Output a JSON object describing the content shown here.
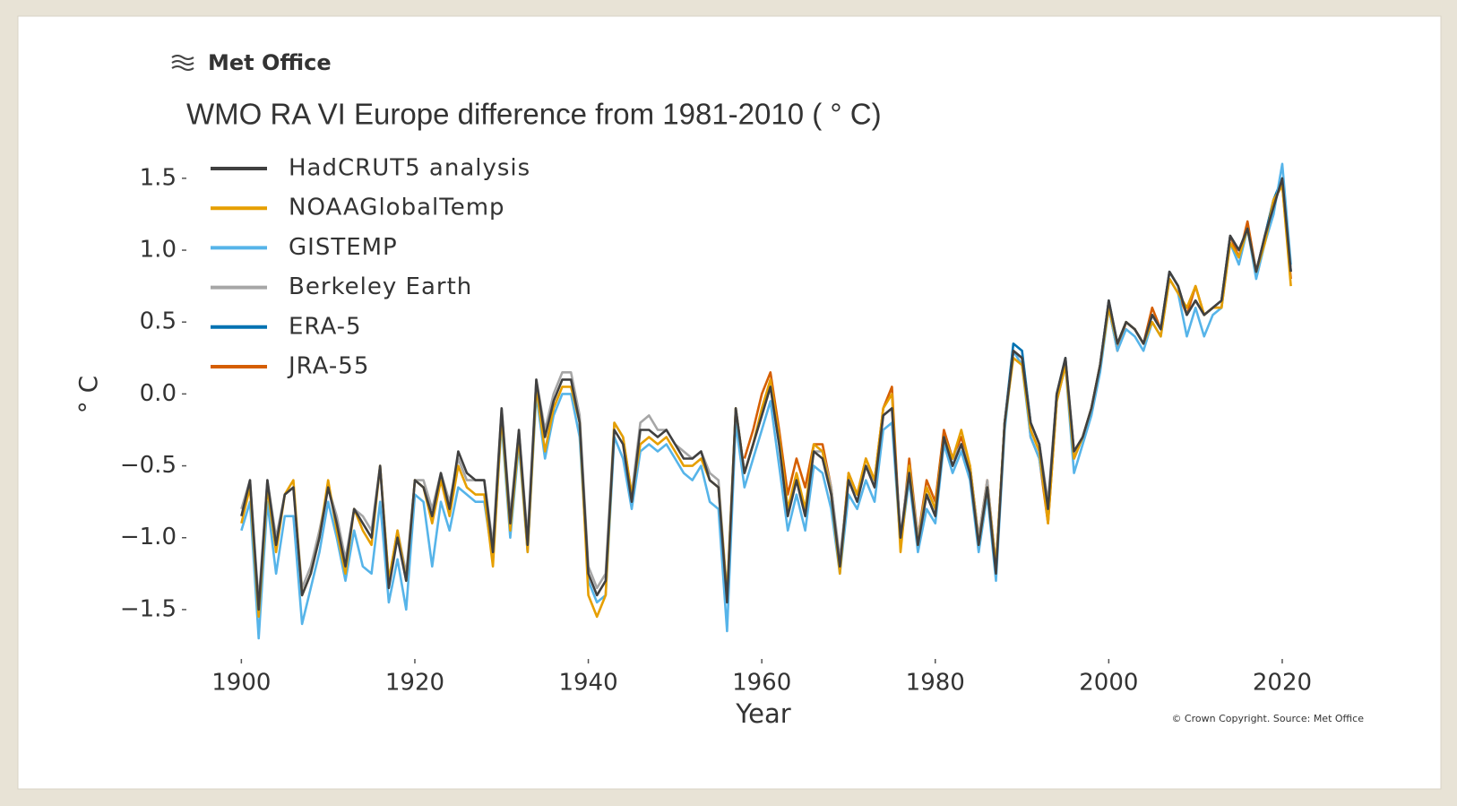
{
  "logo": "Met Office",
  "chart_data": {
    "type": "line",
    "title": "WMO RA VI Europe difference from 1981-2010 ( ° C)",
    "x_label": "Year",
    "y_label": "° C",
    "annotation": "© Crown Copyright. Source: Met Office",
    "x": [
      1900,
      1901,
      1902,
      1903,
      1904,
      1905,
      1906,
      1907,
      1908,
      1909,
      1910,
      1911,
      1912,
      1913,
      1914,
      1915,
      1916,
      1917,
      1918,
      1919,
      1920,
      1921,
      1922,
      1923,
      1924,
      1925,
      1926,
      1927,
      1928,
      1929,
      1930,
      1931,
      1932,
      1933,
      1934,
      1935,
      1936,
      1937,
      1938,
      1939,
      1940,
      1941,
      1942,
      1943,
      1944,
      1945,
      1946,
      1947,
      1948,
      1949,
      1950,
      1951,
      1952,
      1953,
      1954,
      1955,
      1956,
      1957,
      1958,
      1959,
      1960,
      1961,
      1962,
      1963,
      1964,
      1965,
      1966,
      1967,
      1968,
      1969,
      1970,
      1971,
      1972,
      1973,
      1974,
      1975,
      1976,
      1977,
      1978,
      1979,
      1980,
      1981,
      1982,
      1983,
      1984,
      1985,
      1986,
      1987,
      1988,
      1989,
      1990,
      1991,
      1992,
      1993,
      1994,
      1995,
      1996,
      1997,
      1998,
      1999,
      2000,
      2001,
      2002,
      2003,
      2004,
      2005,
      2006,
      2007,
      2008,
      2009,
      2010,
      2011,
      2012,
      2013,
      2014,
      2015,
      2016,
      2017,
      2018,
      2019,
      2020,
      2021
    ],
    "series": [
      {
        "name": "HadCRUT5 analysis",
        "color": "#404040",
        "values": [
          -0.85,
          -0.6,
          -1.5,
          -0.6,
          -1.05,
          -0.7,
          -0.65,
          -1.4,
          -1.25,
          -1.0,
          -0.65,
          -0.9,
          -1.2,
          -0.8,
          -0.9,
          -1.0,
          -0.5,
          -1.35,
          -1.0,
          -1.3,
          -0.6,
          -0.65,
          -0.85,
          -0.55,
          -0.8,
          -0.4,
          -0.55,
          -0.6,
          -0.6,
          -1.1,
          -0.1,
          -0.9,
          -0.25,
          -1.05,
          0.1,
          -0.3,
          -0.05,
          0.1,
          0.1,
          -0.2,
          -1.25,
          -1.4,
          -1.3,
          -0.25,
          -0.35,
          -0.75,
          -0.25,
          -0.25,
          -0.3,
          -0.25,
          -0.35,
          -0.45,
          -0.45,
          -0.4,
          -0.6,
          -0.65,
          -1.45,
          -0.1,
          -0.55,
          -0.35,
          -0.15,
          0.05,
          -0.35,
          -0.85,
          -0.6,
          -0.85,
          -0.4,
          -0.45,
          -0.7,
          -1.2,
          -0.6,
          -0.75,
          -0.5,
          -0.65,
          -0.15,
          -0.1,
          -1.0,
          -0.55,
          -1.05,
          -0.7,
          -0.85,
          -0.3,
          -0.5,
          -0.35,
          -0.55,
          -1.05,
          -0.65,
          -1.25,
          -0.2,
          0.3,
          0.25,
          -0.2,
          -0.35,
          -0.8,
          0.0,
          0.25,
          -0.4,
          -0.3,
          -0.1,
          0.2,
          0.65,
          0.35,
          0.5,
          0.45,
          0.35,
          0.55,
          0.45,
          0.85,
          0.75,
          0.55,
          0.65,
          0.55,
          0.6,
          0.65,
          1.1,
          1.0,
          1.15,
          0.85,
          1.1,
          1.3,
          1.5,
          0.85
        ]
      },
      {
        "name": "NOAAGlobalTemp",
        "color": "#e69f00",
        "values": [
          -0.9,
          -0.65,
          -1.55,
          -0.65,
          -1.1,
          -0.7,
          -0.6,
          -1.4,
          -1.25,
          -1.0,
          -0.6,
          -0.95,
          -1.25,
          -0.8,
          -0.95,
          -1.05,
          -0.5,
          -1.3,
          -0.95,
          -1.3,
          -0.6,
          -0.65,
          -0.9,
          -0.6,
          -0.85,
          -0.5,
          -0.65,
          -0.7,
          -0.7,
          -1.2,
          -0.15,
          -0.95,
          -0.3,
          -1.1,
          0.05,
          -0.4,
          -0.1,
          0.05,
          0.05,
          -0.2,
          -1.4,
          -1.55,
          -1.4,
          -0.2,
          -0.3,
          -0.7,
          -0.35,
          -0.3,
          -0.35,
          -0.3,
          -0.4,
          -0.5,
          -0.5,
          -0.45,
          -0.6,
          -0.65,
          -1.4,
          -0.1,
          -0.55,
          -0.35,
          -0.1,
          0.1,
          -0.3,
          -0.8,
          -0.55,
          -0.8,
          -0.35,
          -0.4,
          -0.7,
          -1.25,
          -0.55,
          -0.7,
          -0.45,
          -0.6,
          -0.1,
          0.0,
          -1.1,
          -0.5,
          -1.05,
          -0.65,
          -0.8,
          -0.3,
          -0.45,
          -0.25,
          -0.5,
          -1.05,
          -0.65,
          -1.2,
          -0.2,
          0.25,
          0.2,
          -0.25,
          -0.4,
          -0.9,
          -0.05,
          0.2,
          -0.45,
          -0.3,
          -0.1,
          0.2,
          0.6,
          0.35,
          0.5,
          0.45,
          0.35,
          0.5,
          0.4,
          0.8,
          0.7,
          0.6,
          0.75,
          0.55,
          0.6,
          0.6,
          1.05,
          0.95,
          1.15,
          0.85,
          1.05,
          1.35,
          1.45,
          0.75
        ]
      },
      {
        "name": "GISTEMP",
        "color": "#56b4e9",
        "values": [
          -0.95,
          -0.75,
          -1.7,
          -0.75,
          -1.25,
          -0.85,
          -0.85,
          -1.6,
          -1.35,
          -1.1,
          -0.75,
          -1.0,
          -1.3,
          -0.95,
          -1.2,
          -1.25,
          -0.75,
          -1.45,
          -1.15,
          -1.5,
          -0.7,
          -0.75,
          -1.2,
          -0.75,
          -0.95,
          -0.65,
          -0.7,
          -0.75,
          -0.75,
          -1.15,
          -0.2,
          -1.0,
          -0.35,
          -1.1,
          0.0,
          -0.45,
          -0.15,
          0.0,
          0.0,
          -0.3,
          -1.3,
          -1.45,
          -1.4,
          -0.3,
          -0.45,
          -0.8,
          -0.4,
          -0.35,
          -0.4,
          -0.35,
          -0.45,
          -0.55,
          -0.6,
          -0.5,
          -0.75,
          -0.8,
          -1.65,
          -0.2,
          -0.65,
          -0.45,
          -0.25,
          -0.05,
          -0.5,
          -0.95,
          -0.7,
          -0.95,
          -0.5,
          -0.55,
          -0.8,
          -1.25,
          -0.7,
          -0.8,
          -0.6,
          -0.75,
          -0.25,
          -0.2,
          -1.05,
          -0.6,
          -1.1,
          -0.8,
          -0.9,
          -0.35,
          -0.55,
          -0.4,
          -0.6,
          -1.1,
          -0.7,
          -1.3,
          -0.25,
          0.3,
          0.2,
          -0.3,
          -0.45,
          -0.85,
          -0.05,
          0.2,
          -0.55,
          -0.35,
          -0.15,
          0.15,
          0.6,
          0.3,
          0.45,
          0.4,
          0.3,
          0.5,
          0.4,
          0.8,
          0.7,
          0.4,
          0.6,
          0.4,
          0.55,
          0.6,
          1.05,
          0.9,
          1.15,
          0.8,
          1.05,
          1.25,
          1.6,
          0.9
        ]
      },
      {
        "name": "Berkeley Earth",
        "color": "#a6a6a6",
        "values": [
          -0.8,
          -0.6,
          -1.45,
          -0.6,
          -1.0,
          -0.7,
          -0.65,
          -1.35,
          -1.2,
          -0.95,
          -0.65,
          -0.85,
          -1.15,
          -0.8,
          -0.85,
          -0.95,
          -0.5,
          -1.3,
          -0.95,
          -1.25,
          -0.6,
          -0.6,
          -0.8,
          -0.55,
          -0.75,
          -0.45,
          -0.6,
          -0.6,
          -0.6,
          -1.05,
          -0.1,
          -0.85,
          -0.25,
          -1.0,
          0.1,
          -0.25,
          0.0,
          0.15,
          0.15,
          -0.15,
          -1.2,
          -1.35,
          -1.25,
          -0.2,
          -0.3,
          -0.7,
          -0.2,
          -0.15,
          -0.25,
          -0.25,
          -0.35,
          -0.4,
          -0.45,
          -0.4,
          -0.55,
          -0.6,
          -1.4,
          -0.1,
          -0.55,
          -0.35,
          -0.15,
          0.05,
          -0.35,
          -0.8,
          -0.6,
          -0.8,
          -0.4,
          -0.4,
          -0.65,
          -1.15,
          -0.6,
          -0.7,
          -0.5,
          -0.6,
          -0.15,
          -0.1,
          -1.0,
          -0.5,
          -1.0,
          -0.65,
          -0.8,
          -0.3,
          -0.45,
          -0.35,
          -0.5,
          -1.0,
          -0.6,
          -1.2,
          -0.2,
          0.3,
          0.25,
          -0.2,
          -0.35,
          -0.75,
          0.0,
          0.25,
          -0.4,
          -0.3,
          -0.1,
          0.2,
          0.65,
          0.35,
          0.5,
          0.45,
          0.35,
          0.55,
          0.45,
          0.85,
          0.75,
          0.55,
          0.65,
          0.55,
          0.6,
          0.65,
          1.1,
          1.0,
          1.15,
          0.85,
          1.1,
          1.3,
          1.5,
          0.85
        ]
      },
      {
        "name": "ERA-5",
        "color": "#0072b2",
        "values": [
          null,
          null,
          null,
          null,
          null,
          null,
          null,
          null,
          null,
          null,
          null,
          null,
          null,
          null,
          null,
          null,
          null,
          null,
          null,
          null,
          null,
          null,
          null,
          null,
          null,
          null,
          null,
          null,
          null,
          null,
          null,
          null,
          null,
          null,
          null,
          null,
          null,
          null,
          null,
          null,
          null,
          null,
          null,
          null,
          null,
          null,
          null,
          null,
          null,
          null,
          null,
          null,
          null,
          null,
          null,
          null,
          null,
          null,
          null,
          null,
          null,
          null,
          null,
          null,
          null,
          null,
          null,
          null,
          null,
          null,
          null,
          null,
          null,
          null,
          null,
          null,
          null,
          null,
          null,
          -0.7,
          -0.85,
          -0.3,
          -0.5,
          -0.35,
          -0.55,
          -1.05,
          -0.65,
          -1.25,
          -0.2,
          0.35,
          0.3,
          -0.2,
          -0.35,
          -0.8,
          0.0,
          0.25,
          -0.45,
          -0.3,
          -0.1,
          0.2,
          0.65,
          0.35,
          0.5,
          0.45,
          0.35,
          0.55,
          0.45,
          0.85,
          0.75,
          0.55,
          0.65,
          0.55,
          0.6,
          0.65,
          1.1,
          1.0,
          1.15,
          0.85,
          1.1,
          1.35,
          1.5,
          0.85
        ]
      },
      {
        "name": "JRA-55",
        "color": "#d55e00",
        "values": [
          null,
          null,
          null,
          null,
          null,
          null,
          null,
          null,
          null,
          null,
          null,
          null,
          null,
          null,
          null,
          null,
          null,
          null,
          null,
          null,
          null,
          null,
          null,
          null,
          null,
          null,
          null,
          null,
          null,
          null,
          null,
          null,
          null,
          null,
          null,
          null,
          null,
          null,
          null,
          null,
          null,
          null,
          null,
          null,
          null,
          null,
          null,
          null,
          null,
          null,
          null,
          null,
          null,
          null,
          null,
          null,
          null,
          null,
          -0.45,
          -0.25,
          0.0,
          0.15,
          -0.25,
          -0.7,
          -0.45,
          -0.65,
          -0.35,
          -0.35,
          -0.65,
          -1.2,
          -0.55,
          -0.7,
          -0.45,
          -0.6,
          -0.1,
          0.05,
          -1.05,
          -0.45,
          -1.0,
          -0.6,
          -0.75,
          -0.25,
          -0.45,
          -0.3,
          -0.5,
          -1.0,
          -0.6,
          -1.2,
          -0.2,
          0.3,
          0.25,
          -0.3,
          -0.45,
          -0.9,
          -0.05,
          0.2,
          -0.4,
          -0.3,
          -0.1,
          0.2,
          0.6,
          0.3,
          0.5,
          0.45,
          0.35,
          0.6,
          0.45,
          0.8,
          0.7,
          0.55,
          0.75,
          0.55,
          0.6,
          0.6,
          1.1,
          0.95,
          1.2,
          0.85,
          1.1,
          1.35,
          1.45,
          0.8
        ]
      }
    ],
    "xlim": [
      1898,
      2023
    ],
    "xticks": [
      1900,
      1920,
      1940,
      1960,
      1980,
      2000,
      2020
    ],
    "ylim": [
      -1.75,
      1.68
    ],
    "yticks": [
      {
        "value": -1.5,
        "label": "−1.5"
      },
      {
        "value": -1.0,
        "label": "−1.0"
      },
      {
        "value": -0.5,
        "label": "−0.5"
      },
      {
        "value": 0,
        "label": "0.0"
      },
      0.5,
      {
        "value": 1,
        "label": "1.0"
      },
      1.5
    ],
    "grid": false,
    "legend": "upper left"
  }
}
